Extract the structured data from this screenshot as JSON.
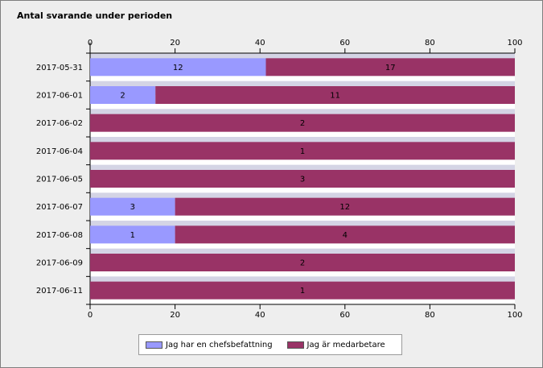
{
  "title": "Antal svarande under perioden",
  "chart_data": {
    "type": "bar",
    "orientation": "horizontal",
    "stacked": "percent",
    "categories": [
      "2017-05-31",
      "2017-06-01",
      "2017-06-02",
      "2017-06-04",
      "2017-06-05",
      "2017-06-07",
      "2017-06-08",
      "2017-06-09",
      "2017-06-11"
    ],
    "series": [
      {
        "name": "Jag har en chefsbefattning",
        "color": "#9999ff",
        "values": [
          12,
          2,
          0,
          0,
          0,
          3,
          1,
          0,
          0
        ]
      },
      {
        "name": "Jag är medarbetare",
        "color": "#993366",
        "values": [
          17,
          11,
          2,
          1,
          3,
          12,
          4,
          2,
          1
        ]
      }
    ],
    "xlim": [
      0,
      100
    ],
    "xticks": [
      "0",
      "20",
      "40",
      "60",
      "80",
      "100"
    ],
    "xaxis_position": "top-and-bottom",
    "legend_position": "bottom",
    "grid": false,
    "band_colors": [
      "#cccce0",
      "#ffffff"
    ]
  }
}
